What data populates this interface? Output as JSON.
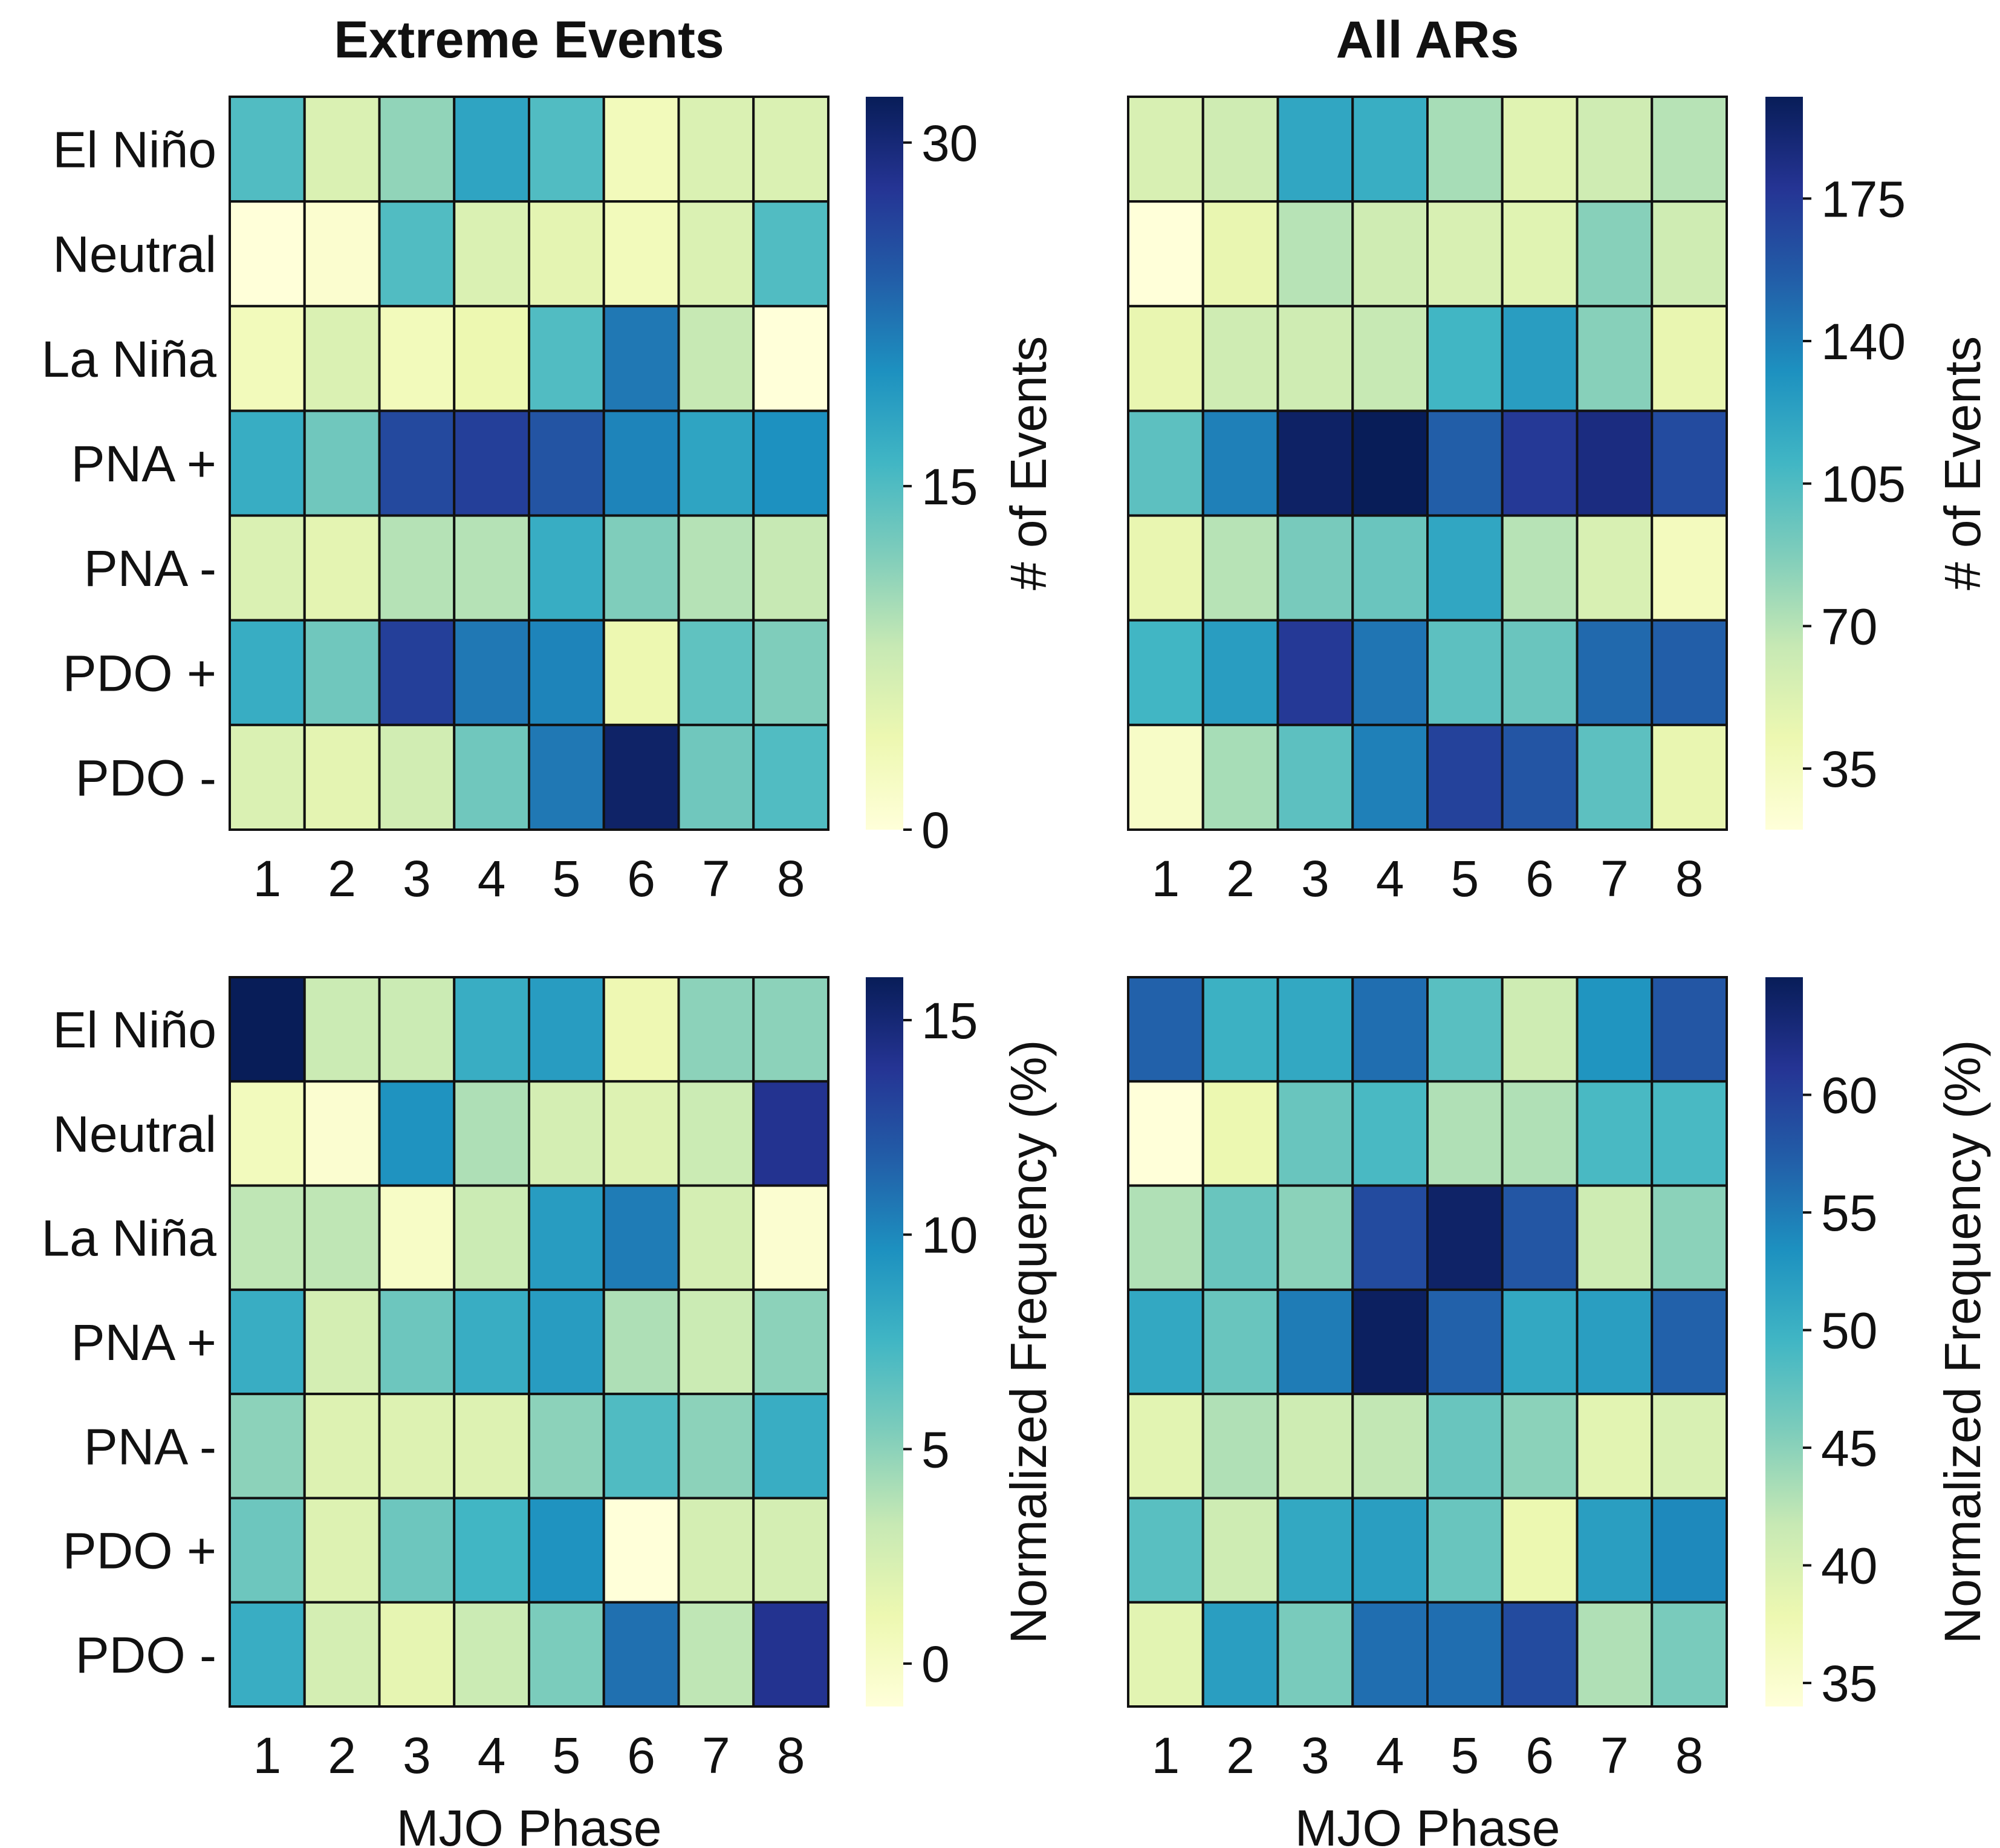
{
  "colormap": [
    "#ffffd9",
    "#edf8b1",
    "#c7e9b4",
    "#7fcdbb",
    "#41b6c4",
    "#1d91c0",
    "#225ea8",
    "#253494",
    "#081d58"
  ],
  "chart_data": [
    {
      "type": "heatmap",
      "title": "Extreme Events",
      "xlabel": "",
      "ylabel": "",
      "x": [
        "1",
        "2",
        "3",
        "4",
        "5",
        "6",
        "7",
        "8"
      ],
      "y": [
        "El Niño",
        "Neutral",
        "La Niña",
        "PNA +",
        "PNA -",
        "PDO +",
        "PDO -"
      ],
      "values": [
        [
          15,
          6,
          11,
          18,
          15,
          3,
          6,
          6
        ],
        [
          0,
          1,
          15,
          6,
          5,
          3,
          6,
          15
        ],
        [
          3,
          6,
          3,
          4,
          15,
          22,
          8,
          0
        ],
        [
          17,
          13,
          26,
          27,
          25,
          21,
          18,
          20
        ],
        [
          6,
          5,
          9,
          9,
          17,
          12,
          9,
          8
        ],
        [
          17,
          13,
          27,
          22,
          21,
          4,
          14,
          12
        ],
        [
          6,
          5,
          7,
          13,
          22,
          31,
          13,
          15
        ]
      ],
      "colorbar": {
        "label": "# of Events",
        "range": [
          0,
          32
        ],
        "ticks": [
          0,
          15,
          30
        ]
      }
    },
    {
      "type": "heatmap",
      "title": "All ARs",
      "xlabel": "",
      "ylabel": "",
      "x": [
        "1",
        "2",
        "3",
        "4",
        "5",
        "6",
        "7",
        "8"
      ],
      "y": [
        "El Niño",
        "Neutral",
        "La Niña",
        "PNA +",
        "PNA -",
        "PDO +",
        "PDO -"
      ],
      "values": [
        [
          55,
          60,
          120,
          115,
          75,
          50,
          60,
          70
        ],
        [
          20,
          45,
          70,
          60,
          55,
          50,
          85,
          60
        ],
        [
          45,
          60,
          60,
          65,
          110,
          125,
          85,
          45
        ],
        [
          100,
          140,
          195,
          200,
          155,
          175,
          185,
          165
        ],
        [
          45,
          70,
          90,
          95,
          120,
          70,
          55,
          35
        ],
        [
          110,
          125,
          175,
          145,
          100,
          95,
          150,
          155
        ],
        [
          30,
          75,
          100,
          140,
          170,
          160,
          100,
          45
        ]
      ],
      "colorbar": {
        "label": "# of Events",
        "range": [
          20,
          200
        ],
        "ticks": [
          35,
          70,
          105,
          140,
          175
        ]
      }
    },
    {
      "type": "heatmap",
      "title": "",
      "xlabel": "MJO Phase",
      "ylabel": "",
      "x": [
        "1",
        "2",
        "3",
        "4",
        "5",
        "6",
        "7",
        "8"
      ],
      "y": [
        "El Niño",
        "Neutral",
        "La Niña",
        "PNA +",
        "PNA -",
        "PDO +",
        "PDO -"
      ],
      "values": [
        [
          16,
          3,
          3,
          8,
          9,
          1,
          5,
          5
        ],
        [
          0.5,
          -0.5,
          9.5,
          4,
          2.5,
          2,
          3,
          14
        ],
        [
          3.5,
          3.5,
          0,
          3,
          9,
          10.5,
          2.5,
          -0.5
        ],
        [
          8,
          2.5,
          6,
          8,
          9,
          4,
          3,
          5
        ],
        [
          5,
          2,
          2,
          2,
          5,
          7,
          5,
          8
        ],
        [
          6,
          2,
          6,
          7.5,
          9.5,
          -1,
          2.5,
          2.5
        ],
        [
          8,
          2.5,
          1.5,
          3,
          5.5,
          11,
          3.5,
          14
        ]
      ],
      "colorbar": {
        "label": "Normalized Frequency (%)",
        "range": [
          -1,
          16
        ],
        "ticks": [
          0,
          5,
          10,
          15
        ]
      }
    },
    {
      "type": "heatmap",
      "title": "",
      "xlabel": "MJO Phase",
      "ylabel": "",
      "x": [
        "1",
        "2",
        "3",
        "4",
        "5",
        "6",
        "7",
        "8"
      ],
      "y": [
        "El Niño",
        "Neutral",
        "La Niña",
        "PNA +",
        "PNA -",
        "PDO +",
        "PDO -"
      ],
      "values": [
        [
          57,
          50,
          51,
          56,
          48,
          41,
          53,
          58
        ],
        [
          34,
          38,
          47,
          49,
          43,
          43,
          49,
          49
        ],
        [
          43,
          47,
          45,
          59,
          64,
          58,
          41,
          45
        ],
        [
          51,
          47,
          55,
          64.5,
          57,
          51,
          52,
          57
        ],
        [
          39,
          43,
          41,
          42,
          47,
          45,
          39,
          40
        ],
        [
          48,
          41,
          51,
          52,
          47,
          38,
          52,
          54
        ],
        [
          39,
          52,
          46,
          56,
          56,
          59,
          43,
          46
        ]
      ],
      "colorbar": {
        "label": "Normalized Frequency (%)",
        "range": [
          34,
          65
        ],
        "ticks": [
          35,
          40,
          45,
          50,
          55,
          60
        ]
      }
    }
  ]
}
